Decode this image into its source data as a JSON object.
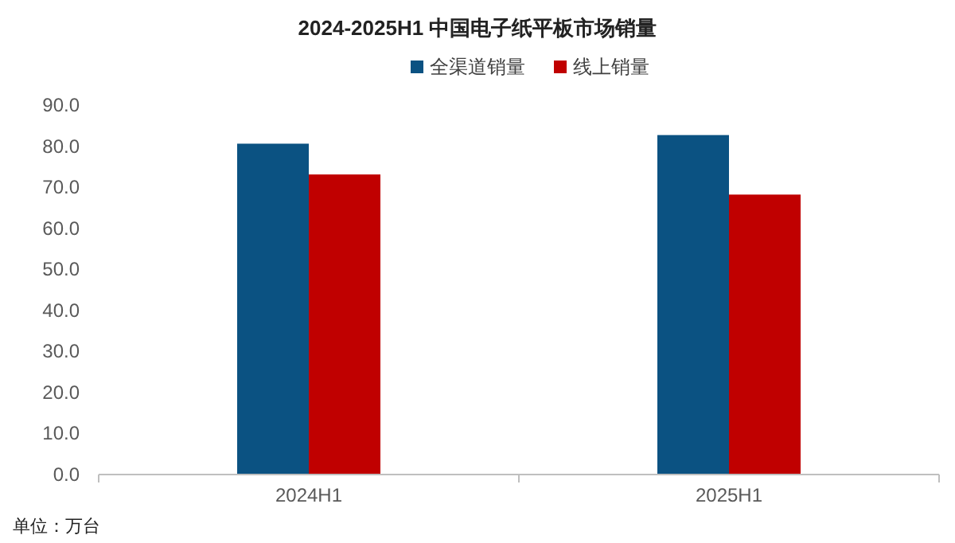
{
  "chart_data": {
    "type": "bar",
    "title": "2024-2025H1 中国电子纸平板市场销量",
    "categories": [
      "2024H1",
      "2025H1"
    ],
    "series": [
      {
        "name": "全渠道销量",
        "color": "#0b5282",
        "values": [
          80.6,
          82.7
        ]
      },
      {
        "name": "线上销量",
        "color": "#c00000",
        "values": [
          73.1,
          68.2
        ]
      }
    ],
    "ylim": [
      0,
      90
    ],
    "yticks": [
      {
        "value": 0,
        "label": "0.0"
      },
      {
        "value": 10,
        "label": "10.0"
      },
      {
        "value": 20,
        "label": "20.0"
      },
      {
        "value": 30,
        "label": "30.0"
      },
      {
        "value": 40,
        "label": "40.0"
      },
      {
        "value": 50,
        "label": "50.0"
      },
      {
        "value": 60,
        "label": "60.0"
      },
      {
        "value": 70,
        "label": "70.0"
      },
      {
        "value": 80,
        "label": "80.0"
      },
      {
        "value": 90,
        "label": "90.0"
      }
    ],
    "grid": false,
    "legend": "top",
    "annotations": [
      "单位：万台"
    ]
  }
}
